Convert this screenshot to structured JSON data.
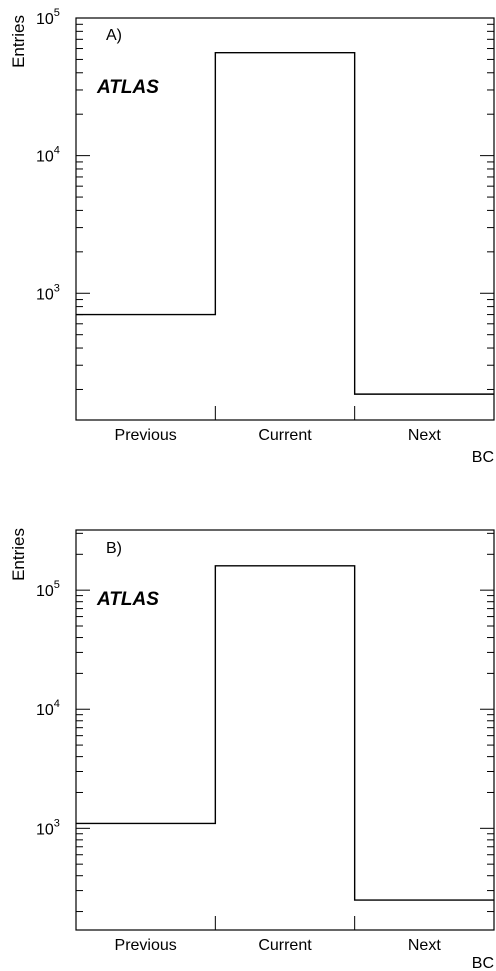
{
  "chart_data": [
    {
      "type": "bar",
      "panel_tag": "A)",
      "logo": "ATLAS",
      "ylabel": "Entries",
      "xlabel": "BC",
      "categories": [
        "Previous",
        "Current",
        "Next"
      ],
      "values": [
        700,
        56000,
        185
      ],
      "yscale": "log",
      "ylim": [
        120,
        100000
      ],
      "y_ticks": [
        {
          "value": 1000,
          "base": "10",
          "exp": "3"
        },
        {
          "value": 10000,
          "base": "10",
          "exp": "4"
        },
        {
          "value": 100000,
          "base": "10",
          "exp": "5"
        }
      ],
      "grid": false
    },
    {
      "type": "bar",
      "panel_tag": "B)",
      "logo": "ATLAS",
      "ylabel": "Entries",
      "xlabel": "BC",
      "categories": [
        "Previous",
        "Current",
        "Next"
      ],
      "values": [
        1100,
        160000,
        250
      ],
      "yscale": "log",
      "ylim": [
        140,
        320000
      ],
      "y_ticks": [
        {
          "value": 1000,
          "base": "10",
          "exp": "3"
        },
        {
          "value": 10000,
          "base": "10",
          "exp": "4"
        },
        {
          "value": 100000,
          "base": "10",
          "exp": "5"
        }
      ],
      "grid": false
    }
  ]
}
